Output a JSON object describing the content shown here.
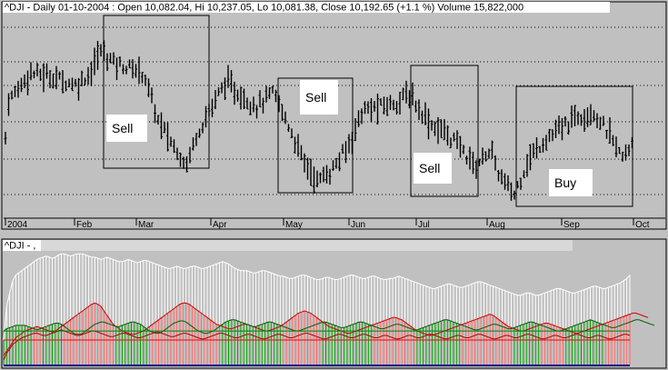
{
  "chart_data": [
    {
      "type": "ohlc",
      "title": "^DJI - Daily 01-10-2004 : Open 10,082.04, Hi 10,237.05, Lo 10,081.38, Close 10,192.65 (+1.1 %) Volume 15,822,000",
      "xlabel": "",
      "ylabel": "",
      "x_tick_labels": [
        "2004",
        "Feb",
        "Mar",
        "Apr",
        "May",
        "Jun",
        "Jul",
        "Aug",
        "Sep",
        "Oct"
      ],
      "grid": true,
      "y_range": [
        9700,
        10950
      ],
      "price_path": {
        "note_keys": [
          "date",
          "close"
        ],
        "points": [
          [
            "2004-01-02",
            10410
          ],
          [
            "2004-01-12",
            10600
          ],
          [
            "2004-01-23",
            10570
          ],
          [
            "2004-02-02",
            10520
          ],
          [
            "2004-02-09",
            10610
          ],
          [
            "2004-02-13",
            10740
          ],
          [
            "2004-02-20",
            10660
          ],
          [
            "2004-02-26",
            10630
          ],
          [
            "2004-03-04",
            10600
          ],
          [
            "2004-03-10",
            10300
          ],
          [
            "2004-03-16",
            10150
          ],
          [
            "2004-03-22",
            10030
          ],
          [
            "2004-03-26",
            10210
          ],
          [
            "2004-03-31",
            10350
          ],
          [
            "2004-04-07",
            10540
          ],
          [
            "2004-04-13",
            10460
          ],
          [
            "2004-04-20",
            10390
          ],
          [
            "2004-04-27",
            10470
          ],
          [
            "2004-05-03",
            10280
          ],
          [
            "2004-05-10",
            10060
          ],
          [
            "2004-05-17",
            9920
          ],
          [
            "2004-05-24",
            9990
          ],
          [
            "2004-05-31",
            10120
          ],
          [
            "2004-06-07",
            10360
          ],
          [
            "2004-06-14",
            10380
          ],
          [
            "2004-06-21",
            10410
          ],
          [
            "2004-06-28",
            10460
          ],
          [
            "2004-07-02",
            10380
          ],
          [
            "2004-07-08",
            10270
          ],
          [
            "2004-07-14",
            10220
          ],
          [
            "2004-07-20",
            10140
          ],
          [
            "2004-07-27",
            10010
          ],
          [
            "2004-08-02",
            10120
          ],
          [
            "2004-08-06",
            9960
          ],
          [
            "2004-08-12",
            9830
          ],
          [
            "2004-08-18",
            10050
          ],
          [
            "2004-08-25",
            10180
          ],
          [
            "2004-09-01",
            10250
          ],
          [
            "2004-09-08",
            10330
          ],
          [
            "2004-09-14",
            10360
          ],
          [
            "2004-09-20",
            10230
          ],
          [
            "2004-09-27",
            10050
          ],
          [
            "2004-10-01",
            10192.65
          ]
        ]
      },
      "annotations": [
        {
          "label": "Sell",
          "from": "2004-02-09",
          "to": "2004-03-31"
        },
        {
          "label": "Sell",
          "from": "2004-05-03",
          "to": "2004-06-07"
        },
        {
          "label": "Sell",
          "from": "2004-07-01",
          "to": "2004-07-30"
        },
        {
          "label": "Buy",
          "from": "2004-08-18",
          "to": "2004-10-01"
        }
      ]
    },
    {
      "type": "bar",
      "title": "^DJI - ,",
      "xlabel": "",
      "ylabel": "",
      "grid": false,
      "y_range": [
        0,
        100
      ],
      "series": [
        {
          "color": "#ffffff",
          "values": [
            22,
            52,
            64,
            75,
            80,
            82,
            84,
            86,
            88,
            90,
            92,
            94,
            95,
            96,
            97,
            96,
            95,
            96,
            98,
            99,
            99,
            98,
            97,
            98,
            99,
            99,
            99,
            98,
            97,
            96,
            96,
            95,
            94,
            95,
            96,
            95,
            94,
            93,
            92,
            92,
            93,
            94,
            93,
            92,
            91,
            92,
            93,
            93,
            92,
            91,
            90,
            89,
            88,
            87,
            86,
            86,
            87,
            88,
            87,
            86,
            86,
            87,
            88,
            88,
            87,
            86,
            86,
            87,
            88,
            89,
            90,
            91,
            92,
            91,
            90,
            88,
            86,
            85,
            84,
            84,
            84,
            83,
            82,
            82,
            83,
            84,
            84,
            83,
            82,
            81,
            80,
            79,
            79,
            78,
            77,
            77,
            78,
            79,
            80,
            80,
            79,
            78,
            77,
            76,
            76,
            77,
            78,
            78,
            77,
            76,
            76,
            77,
            78,
            79,
            80,
            80,
            79,
            78,
            77,
            77,
            78,
            79,
            79,
            78,
            77,
            76,
            76,
            77,
            77,
            78,
            79,
            78,
            77,
            76,
            75,
            74,
            73,
            72,
            71,
            70,
            69,
            68,
            68,
            69,
            70,
            71,
            72,
            72,
            71,
            70,
            69,
            69,
            70,
            71,
            72,
            73,
            74,
            74,
            73,
            72,
            71,
            70,
            69,
            68,
            67,
            66,
            65,
            64,
            63,
            62,
            62,
            63,
            64,
            64,
            63,
            62,
            62,
            63,
            64,
            65,
            66,
            67,
            68,
            68,
            67,
            66,
            65,
            64,
            64,
            65,
            66,
            67,
            68,
            69,
            70,
            70,
            69,
            68,
            68,
            69,
            70,
            71,
            72,
            73,
            75,
            77,
            80
          ]
        },
        {
          "color": "#ff0000",
          "values": [
            8,
            12,
            16,
            20,
            24,
            26,
            28,
            30,
            31,
            32,
            33,
            34,
            33,
            32,
            31,
            30,
            29,
            30,
            32,
            34,
            36,
            38,
            40,
            42,
            44,
            46,
            48,
            50,
            52,
            54,
            55,
            54,
            52,
            48,
            44,
            40,
            36,
            34,
            32,
            30,
            29,
            28,
            27,
            27,
            28,
            29,
            30,
            32,
            34,
            36,
            38,
            40,
            42,
            44,
            46,
            48,
            50,
            52,
            54,
            55,
            55,
            54,
            52,
            50,
            48,
            46,
            44,
            42,
            40,
            38,
            36,
            35,
            34,
            33,
            32,
            32,
            33,
            34,
            35,
            36,
            36,
            35,
            34,
            33,
            32,
            31,
            30,
            30,
            31,
            32,
            33,
            34,
            36,
            38,
            40,
            42,
            44,
            46,
            47,
            48,
            47,
            46,
            44,
            42,
            40,
            38,
            36,
            34,
            33,
            32,
            31,
            30,
            29,
            28,
            28,
            29,
            30,
            31,
            32,
            33,
            34,
            35,
            36,
            37,
            38,
            39,
            40,
            41,
            42,
            42,
            41,
            40,
            38,
            36,
            34,
            32,
            30,
            29,
            28,
            27,
            26,
            26,
            27,
            28,
            29,
            30,
            31,
            32,
            33,
            34,
            35,
            36,
            37,
            38,
            39,
            40,
            41,
            42,
            43,
            44,
            45,
            44,
            42,
            40,
            38,
            36,
            34,
            33,
            32,
            31,
            30,
            30,
            31,
            32,
            33,
            34,
            35,
            36,
            37,
            37,
            36,
            35,
            34,
            33,
            32,
            31,
            30,
            29,
            28,
            28,
            29,
            30,
            31,
            32,
            33,
            34,
            35,
            36,
            37,
            38,
            39,
            40,
            41,
            42,
            43,
            44,
            45,
            46,
            46,
            45,
            44,
            43,
            42
          ]
        },
        {
          "color": "#008000",
          "values": [
            30,
            32,
            33,
            34,
            35,
            35,
            35,
            35,
            34,
            33,
            32,
            31,
            32,
            33,
            34,
            35,
            36,
            37,
            37,
            36,
            34,
            32,
            30,
            28,
            27,
            27,
            28,
            30,
            32,
            34,
            36,
            37,
            38,
            38,
            37,
            36,
            35,
            34,
            34,
            35,
            36,
            37,
            38,
            38,
            37,
            36,
            34,
            32,
            30,
            29,
            28,
            28,
            29,
            31,
            33,
            35,
            37,
            38,
            39,
            39,
            38,
            36,
            34,
            32,
            30,
            29,
            28,
            28,
            29,
            30,
            32,
            34,
            36,
            38,
            39,
            40,
            40,
            39,
            38,
            37,
            36,
            35,
            34,
            34,
            35,
            36,
            37,
            38,
            38,
            37,
            36,
            35,
            34,
            33,
            32,
            31,
            30,
            30,
            31,
            32,
            33,
            34,
            35,
            36,
            37,
            38,
            38,
            37,
            36,
            35,
            34,
            33,
            33,
            34,
            35,
            36,
            37,
            38,
            38,
            37,
            36,
            35,
            34,
            33,
            32,
            32,
            33,
            34,
            35,
            36,
            36,
            35,
            34,
            33,
            32,
            31,
            31,
            32,
            33,
            34,
            35,
            36,
            37,
            38,
            39,
            40,
            40,
            39,
            38,
            37,
            36,
            35,
            34,
            33,
            32,
            31,
            31,
            32,
            33,
            34,
            35,
            36,
            36,
            35,
            34,
            33,
            32,
            32,
            33,
            34,
            35,
            36,
            37,
            38,
            38,
            37,
            36,
            35,
            34,
            33,
            32,
            31,
            30,
            30,
            31,
            32,
            33,
            34,
            35,
            36,
            37,
            38,
            39,
            40,
            39,
            38,
            37,
            36,
            35,
            34,
            33,
            33,
            34,
            35,
            36,
            37,
            38,
            39,
            40,
            40,
            39,
            38,
            37,
            36,
            35
          ]
        },
        {
          "color": "#ff0000",
          "name_hidden": "",
          "values": [
            4,
            10,
            14,
            18,
            20,
            22,
            24,
            25,
            26,
            27,
            28,
            28,
            27,
            26,
            26,
            27,
            28,
            29,
            30,
            31,
            30,
            29,
            28,
            27,
            26,
            26,
            27,
            28,
            29,
            30,
            30,
            29,
            28,
            27,
            26,
            25,
            25,
            26,
            27,
            28,
            28,
            27,
            26,
            25,
            24,
            24,
            25,
            26,
            27,
            28,
            29,
            29,
            28,
            27,
            26,
            25,
            25,
            26,
            27,
            28,
            28,
            27,
            26,
            25,
            24,
            23,
            23,
            24,
            25,
            26,
            27,
            28,
            28,
            27,
            26,
            25,
            24,
            24,
            25,
            26,
            27,
            27,
            26,
            25,
            24,
            23,
            23,
            24,
            25,
            26,
            27,
            27,
            26,
            25,
            24,
            24,
            25,
            26,
            27,
            28,
            28,
            27,
            26,
            25,
            24,
            23,
            23,
            24,
            25,
            26,
            27,
            27,
            26,
            25,
            24,
            24,
            25,
            26,
            27,
            27,
            26,
            25,
            24,
            24,
            25,
            26,
            26,
            25,
            24,
            23,
            23,
            24,
            25,
            26,
            26,
            25,
            24,
            24,
            25,
            26,
            27,
            27,
            26,
            25,
            24,
            23,
            23,
            24,
            25,
            26,
            26,
            25,
            24,
            24,
            25,
            26,
            27,
            27,
            26,
            25,
            24,
            23,
            23,
            24,
            25,
            26,
            26,
            25,
            24,
            24,
            25,
            26,
            27,
            27,
            26,
            25,
            24,
            23,
            23,
            24,
            25,
            26,
            26,
            25,
            24,
            24,
            25,
            26,
            27,
            27,
            26,
            25,
            24,
            24,
            25,
            26,
            26,
            25,
            24,
            23,
            23,
            24,
            25,
            26,
            27,
            27,
            26
          ]
        }
      ],
      "reference_lines": [
        {
          "value": 22,
          "color": "#ff0000"
        },
        {
          "value": 30,
          "color": "#008000"
        }
      ]
    }
  ],
  "colors": {
    "background": "#c0c0c0",
    "bar": "#000000",
    "box": "#000000",
    "label_bg": "#ffffff",
    "volume_header": "#d8d8d8"
  }
}
